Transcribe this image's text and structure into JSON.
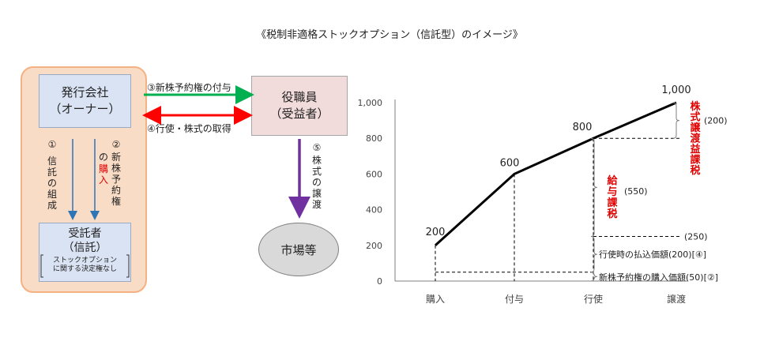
{
  "title": "《税制非適格ストックオプション（信託型）のイメージ》",
  "diagram": {
    "issuer": {
      "line1": "発行会社",
      "line2": "（オーナー）"
    },
    "trustee": {
      "line1": "受託者",
      "line2": "（信託）",
      "note1": "ストックオプション",
      "note2": "に関する決定権なし"
    },
    "officer": {
      "line1": "役職員",
      "line2": "（受益者）"
    },
    "market": "市場等",
    "step1": {
      "num": "①",
      "text": "信託の組成"
    },
    "step2": {
      "num": "②",
      "text_a": "新株予約権",
      "text_b": "の",
      "text_red": "購入"
    },
    "step3": "③新株予約権の付与",
    "step4": "④行使・株式の取得",
    "step5": {
      "num": "⑤",
      "text": "株式の譲渡"
    }
  },
  "chart_data": {
    "type": "line",
    "categories": [
      "購入",
      "付与",
      "行使",
      "譲渡"
    ],
    "values": [
      200,
      600,
      800,
      1000
    ],
    "value_labels": [
      "200",
      "600",
      "800",
      "1,000"
    ],
    "ylim": [
      0,
      1000
    ],
    "yticks": [
      "0",
      "200",
      "400",
      "600",
      "800",
      "1,000"
    ],
    "annotations": {
      "capital_gains": {
        "label": "株式譲渡益課税",
        "amount": "(200)"
      },
      "salary": {
        "label": "給与課税",
        "amount": "(550)"
      },
      "exercise_mark": "(250)",
      "exercise_price": "行使時の払込価額(200)[④]",
      "purchase_price": "新株予約権の購入価額(50)[②]"
    },
    "colors": {
      "line": "#000000",
      "tax_label": "#e00000"
    }
  },
  "colors": {
    "green_arrow": "#00b050",
    "red_arrow": "#ff0000",
    "blue_arrow": "#2e75b6",
    "purple_arrow": "#7030a0"
  }
}
